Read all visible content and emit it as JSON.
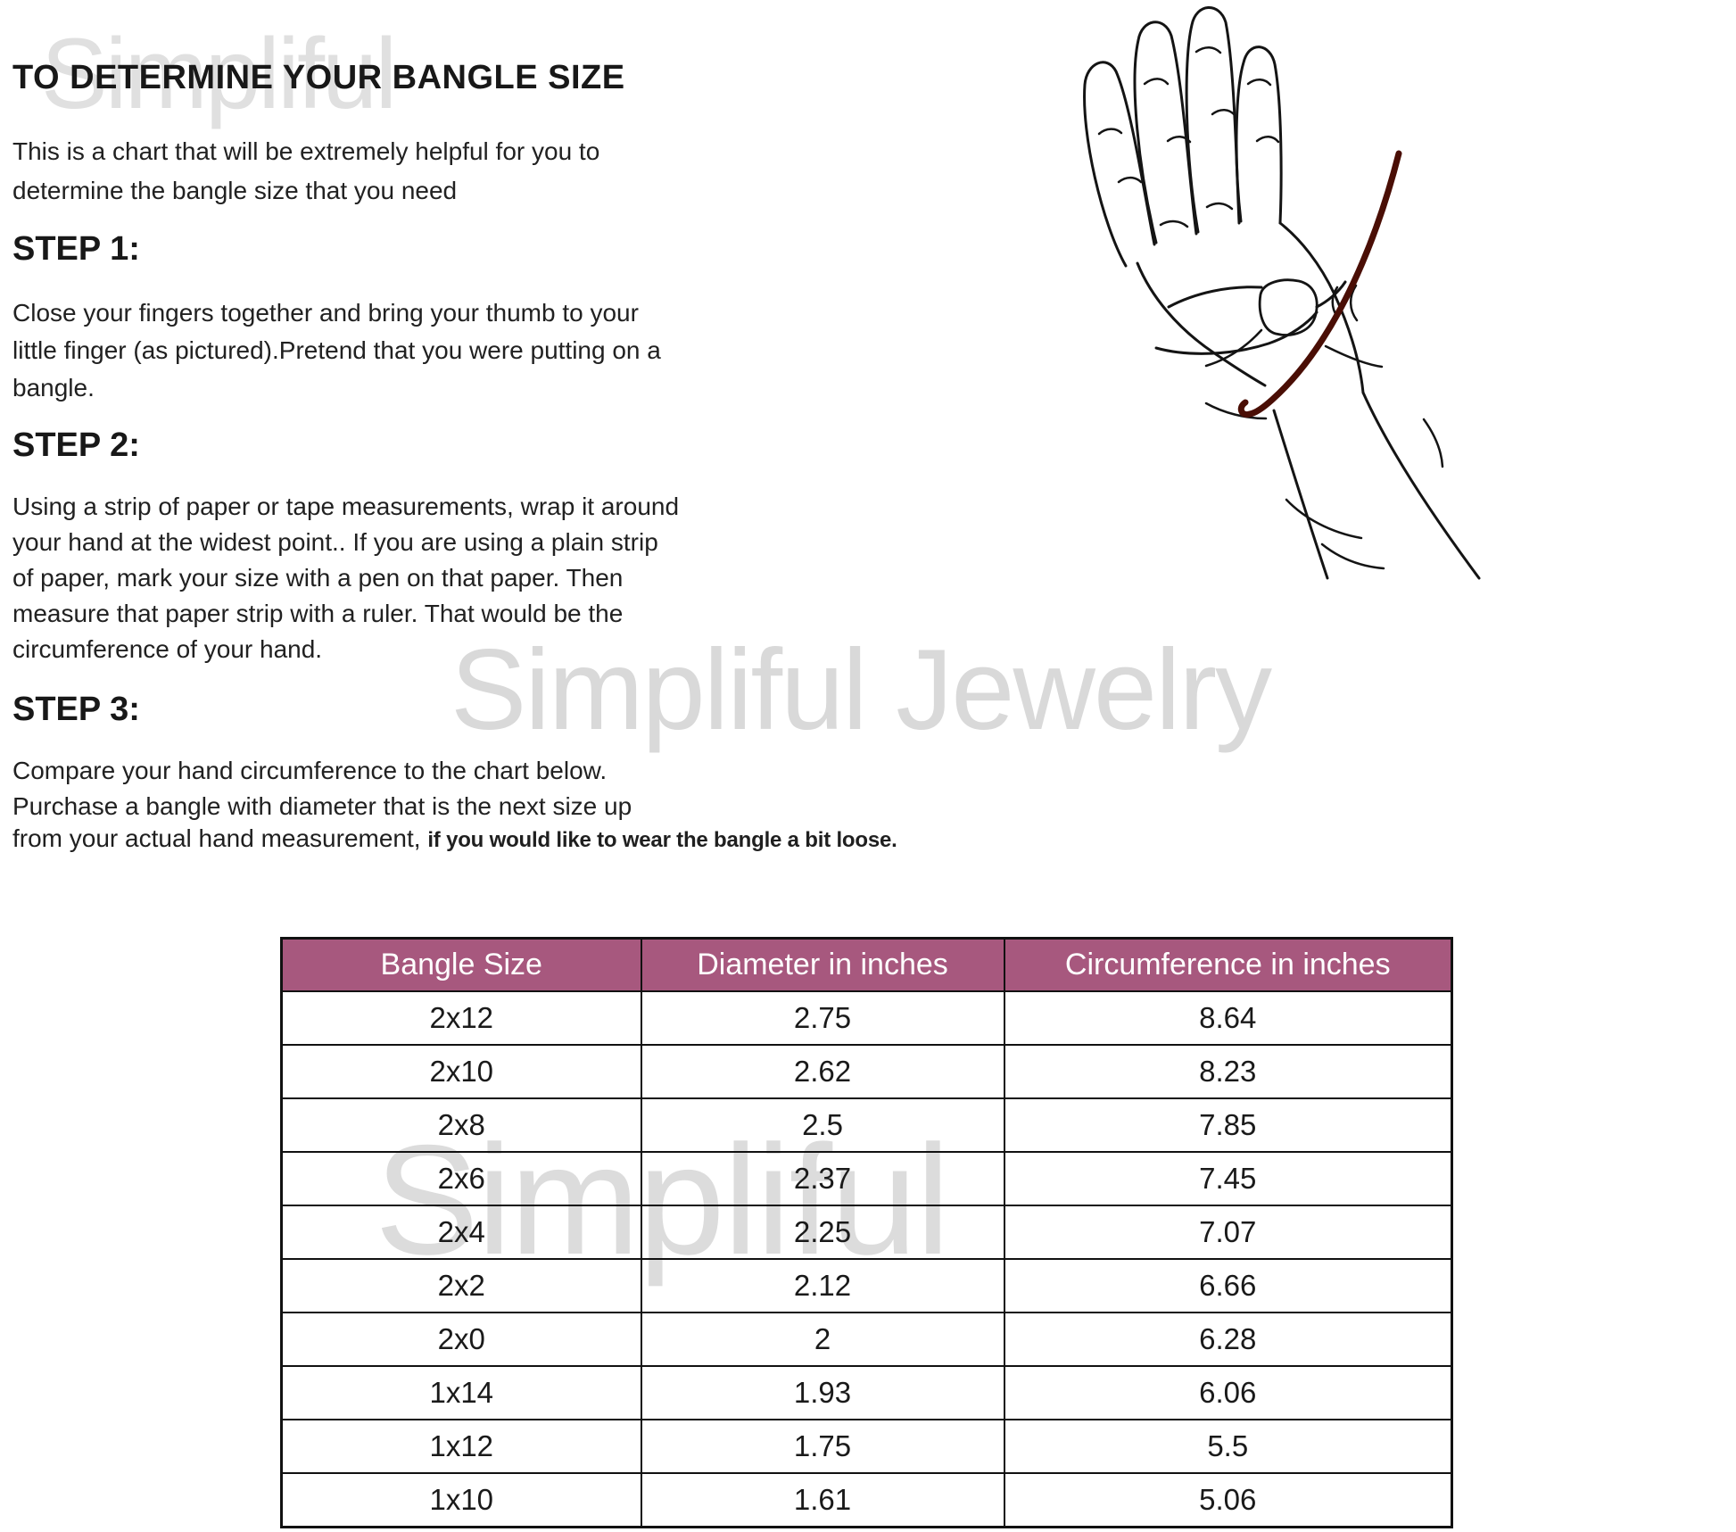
{
  "watermarks": {
    "top": "Simpliful",
    "middle": "Simpliful Jewelry",
    "table": "Simpliful"
  },
  "title": "TO DETERMINE YOUR BANGLE SIZE",
  "intro_lines": [
    "This is a chart that will be extremely helpful for you to",
    "determine the bangle size that you need"
  ],
  "steps": [
    {
      "heading": "STEP 1:",
      "lines": [
        "Close your fingers together and bring your thumb to your",
        "little finger (as pictured).Pretend that you were putting on a",
        "bangle."
      ]
    },
    {
      "heading": "STEP 2:",
      "lines": [
        "Using a strip of paper or tape measurements, wrap it around",
        "your hand at the widest point.. If you are using a plain strip",
        "of paper, mark your size with a pen on that paper. Then",
        "measure that paper strip with a ruler. That would be the",
        "circumference of your hand."
      ]
    },
    {
      "heading": "STEP 3:",
      "lines": [
        "Compare your hand circumference to the chart below.",
        "Purchase a bangle with diameter that is the next size up"
      ],
      "line3_normal": "from your actual hand measurement, ",
      "line3_accent": "if you would like to wear the bangle a bit loose."
    }
  ],
  "table": {
    "headers": [
      "Bangle Size",
      "Diameter in inches",
      "Circumference in inches"
    ],
    "rows": [
      [
        "2x12",
        "2.75",
        "8.64"
      ],
      [
        "2x10",
        "2.62",
        "8.23"
      ],
      [
        "2x8",
        "2.5",
        "7.85"
      ],
      [
        "2x6",
        "2.37",
        "7.45"
      ],
      [
        "2x4",
        "2.25",
        "7.07"
      ],
      [
        "2x2",
        "2.12",
        "6.66"
      ],
      [
        "2x0",
        "2",
        "6.28"
      ],
      [
        "1x14",
        "1.93",
        "6.06"
      ],
      [
        "1x12",
        "1.75",
        "5.5"
      ],
      [
        "1x10",
        "1.61",
        "5.06"
      ]
    ],
    "header_bg": "#A7587E",
    "header_text_color": "#ffffff",
    "border_color": "#111111"
  },
  "illustration": {
    "name": "hand-with-measuring-strap",
    "line_color": "#141414",
    "strap_color": "#4a0e05"
  }
}
